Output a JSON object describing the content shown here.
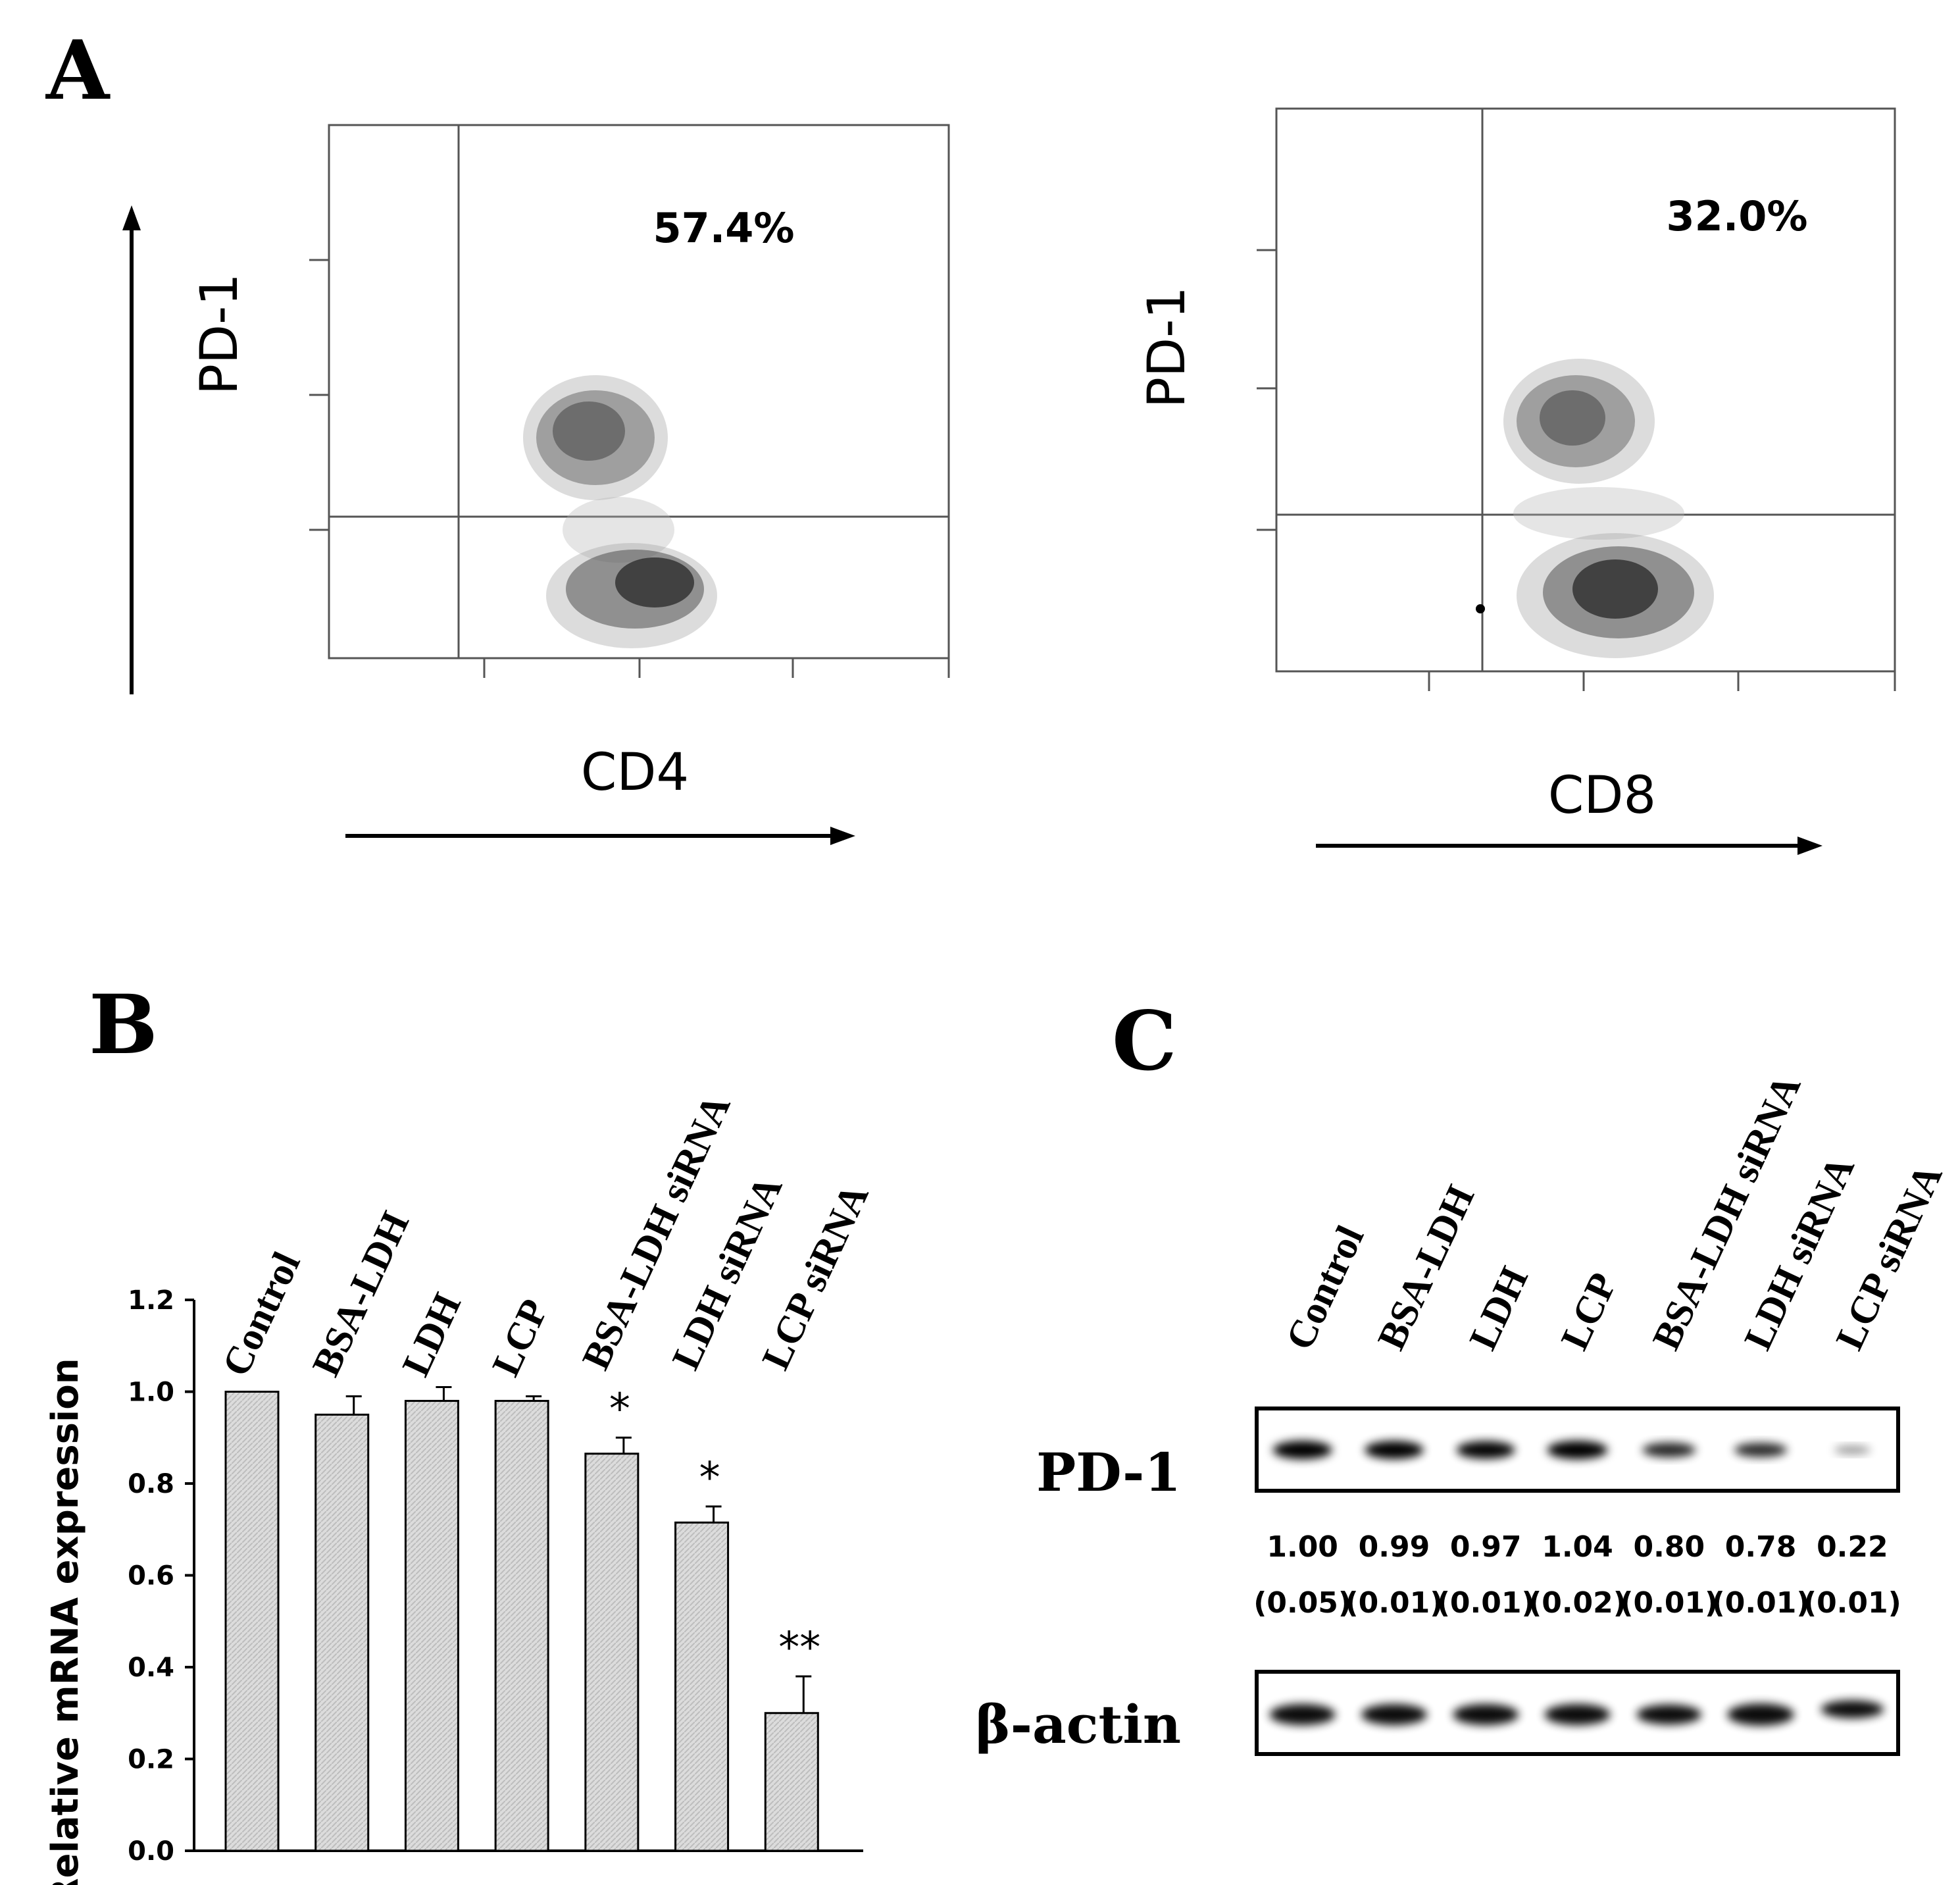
{
  "panel_labels": {
    "a": "A",
    "b": "B",
    "c": "C"
  },
  "flow": {
    "left": {
      "y_label": "PD-1",
      "x_label": "CD4",
      "percentage": "57.4%"
    },
    "right": {
      "y_label": "PD-1",
      "x_label": "CD8",
      "percentage": "32.0%"
    }
  },
  "chart_data": [
    {
      "type": "scatter",
      "title": "",
      "xlabel": "CD4",
      "ylabel": "PD-1",
      "annotation": "57.4%"
    },
    {
      "type": "scatter",
      "title": "",
      "xlabel": "CD8",
      "ylabel": "PD-1",
      "annotation": "32.0%"
    },
    {
      "type": "bar",
      "title": "",
      "xlabel": "",
      "ylabel": "Relative mRNA expression",
      "categories": [
        "Control",
        "BSA-LDH",
        "LDH",
        "LCP",
        "BSA-LDH siRNA",
        "LDH siRNA",
        "LCP siRNA"
      ],
      "values": [
        1.0,
        0.95,
        0.98,
        0.98,
        0.865,
        0.715,
        0.3
      ],
      "errors": [
        0.0,
        0.04,
        0.03,
        0.01,
        0.035,
        0.035,
        0.08
      ],
      "significance": [
        "",
        "",
        "",
        "",
        "*",
        "*",
        "**"
      ],
      "ylim": [
        0.0,
        1.2
      ],
      "yticks": [
        "0.0",
        "0.2",
        "0.4",
        "0.6",
        "0.8",
        "1.0",
        "1.2"
      ],
      "ytick_values": [
        0.0,
        0.2,
        0.4,
        0.6,
        0.8,
        1.0,
        1.2
      ]
    },
    {
      "type": "table",
      "title": "",
      "lanes": [
        "Control",
        "BSA-LDH",
        "LDH",
        "LCP",
        "BSA-LDH siRNA",
        "LDH siRNA",
        "LCP siRNA"
      ],
      "rows": [
        "PD-1",
        "β-actin"
      ],
      "pd1_relative": [
        "1.00",
        "0.99",
        "0.97",
        "1.04",
        "0.80",
        "0.78",
        "0.22"
      ],
      "pd1_sd": [
        "(0.05)",
        "(0.01)",
        "(0.01)",
        "(0.02)",
        "(0.01)",
        "(0.01)",
        "(0.01)"
      ],
      "pd1_band_intensity": [
        1.0,
        0.99,
        0.97,
        1.04,
        0.8,
        0.78,
        0.22
      ],
      "actin_band_intensity": [
        1.0,
        1.0,
        1.0,
        1.0,
        0.95,
        1.05,
        0.85
      ]
    }
  ]
}
